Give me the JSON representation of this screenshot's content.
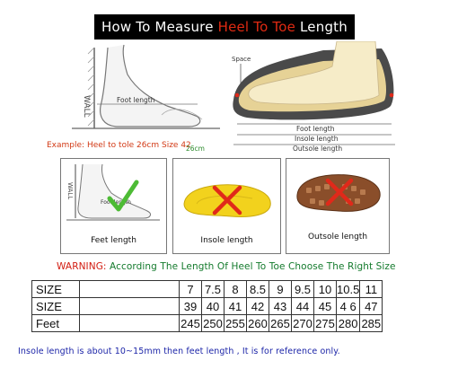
{
  "title": {
    "prefix": "How To Measure ",
    "highlight": "Heel To Toe",
    "suffix": " Length"
  },
  "left_diagram": {
    "wall_label": "WALL",
    "foot_length_label": "Foot length"
  },
  "example": {
    "text": "Example: Heel to tole 26cm Size 42",
    "measure": "26cm"
  },
  "right_diagram": {
    "space_label": "Space",
    "foot_length": "Foot length",
    "insole_length": "Insole length",
    "outsole_length": "Outsole length"
  },
  "panels": [
    {
      "label": "Feet length",
      "wall_label": "WALL",
      "foot_length_label": "Foot length"
    },
    {
      "label": "Insole length"
    },
    {
      "label": "Outsole length"
    }
  ],
  "warning": {
    "prefix": "WARNING: ",
    "text": "According The Length Of Heel To Toe Choose The Right Size"
  },
  "size_table": {
    "rows": [
      {
        "header": "SIZE",
        "values": [
          "7",
          "7.5",
          "8",
          "8.5",
          "9",
          "9.5",
          "10",
          "10.5",
          "11"
        ]
      },
      {
        "header": "SIZE",
        "values": [
          "39",
          "40",
          "41",
          "42",
          "43",
          "44",
          "45",
          "4 6",
          "47"
        ]
      },
      {
        "header": "Feet",
        "values": [
          "245",
          "250",
          "255",
          "260",
          "265",
          "270",
          "275",
          "280",
          "285"
        ]
      }
    ]
  },
  "footer": "Insole length is about 10~15mm then feet length , It is for reference only.",
  "colors": {
    "accent_red": "#e02a12",
    "check_green": "#4dbb35",
    "cross_red": "#e0291a",
    "insole_yellow": "#f2d21d",
    "footer_blue": "#1c25a8"
  }
}
